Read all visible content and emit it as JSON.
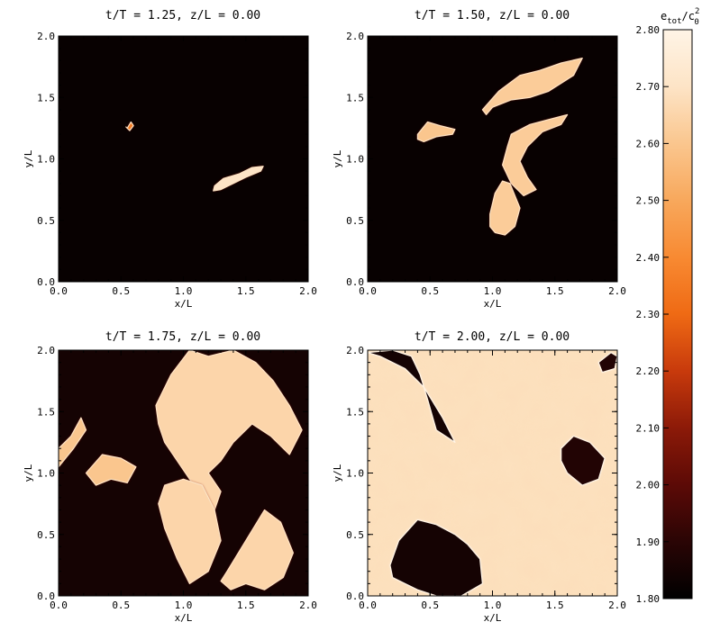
{
  "colors": {
    "background": "#1a0404",
    "colormap": [
      "#000000",
      "#2a0505",
      "#5c0a06",
      "#8c1a08",
      "#c83a0c",
      "#ef6a14",
      "#f88a32",
      "#f8a85c",
      "#fac68e",
      "#fde4c6",
      "#fff4e6"
    ]
  },
  "colorbar": {
    "label": "e_tot/c_0^2",
    "label_main": "e",
    "label_sub1": "tot",
    "label_slash": "/c",
    "label_sub2": "0",
    "label_sup": "2",
    "ticks": [
      "2.80",
      "2.70",
      "2.60",
      "2.50",
      "2.40",
      "2.30",
      "2.20",
      "2.10",
      "2.00",
      "1.90",
      "1.80"
    ],
    "range": [
      1.8,
      2.8
    ]
  },
  "chart_data": [
    {
      "type": "heatmap",
      "title": "t/T = 1.25, z/L = 0.00",
      "xlabel": "x/L",
      "ylabel": "y/L",
      "xlim": [
        0.0,
        2.0
      ],
      "ylim": [
        0.0,
        2.0
      ],
      "xticks": [
        "0.0",
        "0.5",
        "1.0",
        "1.5",
        "2.0"
      ],
      "yticks": [
        "0.0",
        "0.5",
        "1.0",
        "1.5",
        "2.0"
      ],
      "background_value": 1.82,
      "structures": [
        {
          "x": [
            0.55,
            0.58,
            0.6,
            0.57,
            0.54
          ],
          "y": [
            1.25,
            1.3,
            1.27,
            1.23,
            1.26
          ],
          "value": 2.35
        },
        {
          "x": [
            1.25,
            1.32,
            1.45,
            1.55,
            1.64,
            1.62,
            1.5,
            1.4,
            1.3,
            1.24
          ],
          "y": [
            0.78,
            0.84,
            0.88,
            0.93,
            0.94,
            0.9,
            0.85,
            0.8,
            0.75,
            0.74
          ],
          "value": 2.7
        }
      ]
    },
    {
      "type": "heatmap",
      "title": "t/T = 1.50, z/L = 0.00",
      "xlabel": "x/L",
      "ylabel": "y/L",
      "xlim": [
        0.0,
        2.0
      ],
      "ylim": [
        0.0,
        2.0
      ],
      "xticks": [
        "0.0",
        "0.5",
        "1.0",
        "1.5",
        "2.0"
      ],
      "yticks": [
        "0.0",
        "0.5",
        "1.0",
        "1.5",
        "2.0"
      ],
      "background_value": 1.82,
      "structures": [
        {
          "x": [
            0.92,
            1.05,
            1.22,
            1.38,
            1.55,
            1.72,
            1.65,
            1.45,
            1.3,
            1.15,
            1.0,
            0.95
          ],
          "y": [
            1.4,
            1.55,
            1.68,
            1.72,
            1.78,
            1.82,
            1.68,
            1.55,
            1.5,
            1.48,
            1.42,
            1.36
          ],
          "value": 2.62
        },
        {
          "x": [
            0.4,
            0.48,
            0.58,
            0.7,
            0.68,
            0.55,
            0.45,
            0.4
          ],
          "y": [
            1.2,
            1.3,
            1.27,
            1.24,
            1.2,
            1.18,
            1.14,
            1.16
          ],
          "value": 2.6
        },
        {
          "x": [
            1.15,
            1.3,
            1.45,
            1.6,
            1.55,
            1.4,
            1.28,
            1.22,
            1.28,
            1.35,
            1.25,
            1.15,
            1.08,
            1.12
          ],
          "y": [
            1.2,
            1.28,
            1.32,
            1.36,
            1.28,
            1.22,
            1.1,
            0.98,
            0.85,
            0.75,
            0.7,
            0.8,
            0.95,
            1.1
          ],
          "value": 2.62
        },
        {
          "x": [
            0.98,
            1.02,
            1.08,
            1.14,
            1.22,
            1.18,
            1.1,
            1.02,
            0.98
          ],
          "y": [
            0.55,
            0.72,
            0.82,
            0.8,
            0.6,
            0.45,
            0.38,
            0.4,
            0.45
          ],
          "value": 2.62
        }
      ]
    },
    {
      "type": "heatmap",
      "title": "t/T = 1.75, z/L = 0.00",
      "xlabel": "x/L",
      "ylabel": "y/L",
      "xlim": [
        0.0,
        2.0
      ],
      "ylim": [
        0.0,
        2.0
      ],
      "xticks": [
        "0.0",
        "0.5",
        "1.0",
        "1.5",
        "2.0"
      ],
      "yticks": [
        "0.0",
        "0.5",
        "1.0",
        "1.5",
        "2.0"
      ],
      "background_value": 1.85,
      "structures": [
        {
          "x": [
            0.78,
            0.9,
            1.05,
            1.2,
            1.4,
            1.58,
            1.72,
            1.85,
            1.95,
            1.85,
            1.7,
            1.55,
            1.4,
            1.3,
            1.2,
            1.3,
            1.25,
            1.15,
            1.05,
            0.95,
            0.85,
            0.8
          ],
          "y": [
            1.55,
            1.8,
            2.0,
            1.95,
            2.0,
            1.9,
            1.75,
            1.55,
            1.35,
            1.15,
            1.3,
            1.4,
            1.25,
            1.1,
            1.0,
            0.85,
            0.7,
            0.8,
            0.95,
            1.1,
            1.25,
            1.4
          ],
          "value": 2.65
        },
        {
          "x": [
            0.0,
            0.12,
            0.22,
            0.18,
            0.1,
            0.0
          ],
          "y": [
            1.05,
            1.2,
            1.35,
            1.45,
            1.3,
            1.2
          ],
          "value": 2.6
        },
        {
          "x": [
            0.22,
            0.35,
            0.5,
            0.62,
            0.55,
            0.42,
            0.3
          ],
          "y": [
            1.0,
            1.15,
            1.12,
            1.05,
            0.92,
            0.95,
            0.9
          ],
          "value": 2.6
        },
        {
          "x": [
            0.85,
            1.0,
            1.15,
            1.25,
            1.3,
            1.2,
            1.05,
            0.95,
            0.85,
            0.8
          ],
          "y": [
            0.9,
            0.95,
            0.9,
            0.7,
            0.45,
            0.2,
            0.1,
            0.3,
            0.55,
            0.75
          ],
          "value": 2.65
        },
        {
          "x": [
            1.35,
            1.5,
            1.65,
            1.78,
            1.88,
            1.8,
            1.65,
            1.5,
            1.38,
            1.3
          ],
          "y": [
            0.2,
            0.45,
            0.7,
            0.6,
            0.35,
            0.15,
            0.05,
            0.1,
            0.05,
            0.12
          ],
          "value": 2.65
        }
      ]
    },
    {
      "type": "heatmap",
      "title": "t/T = 2.00, z/L = 0.00",
      "xlabel": "x/L",
      "ylabel": "y/L",
      "xlim": [
        0.0,
        2.0
      ],
      "ylim": [
        0.0,
        2.0
      ],
      "xticks": [
        "0.0",
        "0.5",
        "1.0",
        "1.5",
        "2.0"
      ],
      "yticks": [
        "0.0",
        "0.5",
        "1.0",
        "1.5",
        "2.0"
      ],
      "background_value": 2.68,
      "structures": [
        {
          "x": [
            0.0,
            0.2,
            0.35,
            0.42,
            0.48,
            0.55,
            0.7,
            0.6,
            0.45,
            0.3,
            0.2,
            0.1,
            0.0
          ],
          "y": [
            1.98,
            2.0,
            1.95,
            1.8,
            1.6,
            1.35,
            1.25,
            1.45,
            1.7,
            1.85,
            1.9,
            1.95,
            1.98
          ],
          "value": 1.85
        },
        {
          "x": [
            0.18,
            0.25,
            0.4,
            0.55,
            0.7,
            0.8,
            0.9,
            0.92,
            0.75,
            0.55,
            0.4,
            0.3,
            0.2
          ],
          "y": [
            0.25,
            0.45,
            0.62,
            0.58,
            0.5,
            0.42,
            0.3,
            0.1,
            0.0,
            0.0,
            0.05,
            0.1,
            0.15
          ],
          "value": 1.85
        },
        {
          "x": [
            1.55,
            1.65,
            1.78,
            1.9,
            1.85,
            1.72,
            1.6,
            1.55
          ],
          "y": [
            1.2,
            1.3,
            1.25,
            1.12,
            0.95,
            0.9,
            1.0,
            1.1
          ],
          "value": 1.88
        },
        {
          "x": [
            1.85,
            1.95,
            2.0,
            1.98,
            1.88
          ],
          "y": [
            1.9,
            1.98,
            1.95,
            1.85,
            1.82
          ],
          "value": 1.88
        }
      ]
    }
  ]
}
